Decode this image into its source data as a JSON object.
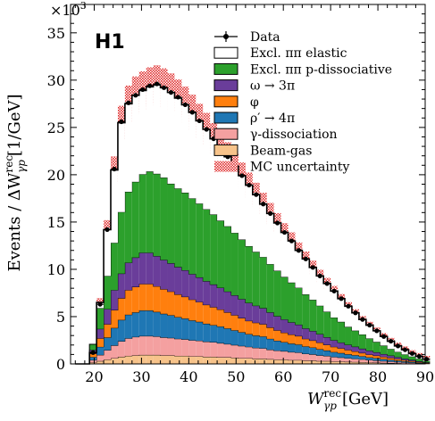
{
  "chart_data": {
    "type": "bar",
    "experiment_label": "H1",
    "ylabel_prefix": "Events /",
    "ylabel_delta": "ΔW",
    "ylabel_sup": "rec",
    "ylabel_sub": "γp",
    "ylabel_unit": "[1/GeV]",
    "xlabel_main": "W",
    "xlabel_sup": "rec",
    "xlabel_sub": "γp",
    "xlabel_unit": "[GeV]",
    "y_multiplier": "×10",
    "y_multiplier_exp": "3",
    "xlim": [
      15,
      90
    ],
    "ylim": [
      0,
      38
    ],
    "x_ticks": [
      20,
      30,
      40,
      50,
      60,
      70,
      80,
      90
    ],
    "y_ticks": [
      0,
      5,
      10,
      15,
      20,
      25,
      30,
      35
    ],
    "bin_width": 1.5,
    "bin_edges_start": 16,
    "totals": [
      0,
      0,
      1.2,
      6.5,
      14.2,
      20.5,
      25.5,
      27.5,
      28.4,
      28.9,
      29.3,
      29.5,
      29.2,
      28.7,
      28.1,
      27.4,
      26.6,
      25.7,
      24.8,
      23.8,
      22.9,
      21.9,
      20.9,
      19.9,
      18.9,
      17.9,
      16.9,
      15.9,
      14.9,
      13.9,
      13.0,
      12.0,
      11.1,
      10.2,
      9.3,
      8.5,
      7.7,
      6.9,
      6.1,
      5.4,
      4.7,
      4.1,
      3.5,
      2.9,
      2.4,
      1.9,
      1.5,
      1.1,
      0.8,
      0.5
    ],
    "series": [
      {
        "name": "Data",
        "color": "#000000",
        "kind": "points",
        "values": [
          0,
          0,
          1.2,
          6.3,
          14.2,
          20.6,
          25.6,
          27.6,
          28.4,
          29.0,
          29.4,
          29.6,
          29.2,
          28.7,
          28.2,
          27.4,
          26.6,
          25.7,
          24.8,
          23.8,
          22.9,
          21.9,
          20.9,
          19.9,
          18.9,
          17.9,
          16.9,
          15.9,
          14.9,
          13.9,
          13.0,
          12.0,
          11.1,
          10.2,
          9.3,
          8.5,
          7.7,
          6.9,
          6.1,
          5.4,
          4.7,
          4.1,
          3.5,
          2.9,
          2.4,
          1.9,
          1.5,
          1.1,
          0.8,
          0.5
        ]
      },
      {
        "name": "Excl. ππ elastic",
        "color": "#ffffff",
        "kind": "stack"
      },
      {
        "name": "Excl. ππ p-dissociative",
        "color": "#2ca02c",
        "kind": "stack",
        "values": [
          0,
          0,
          0.6,
          2.2,
          3.5,
          5.0,
          6.5,
          7.5,
          8.0,
          8.3,
          8.6,
          8.7,
          8.7,
          8.4,
          8.3,
          8.2,
          8.0,
          7.8,
          7.6,
          7.4,
          7.1,
          6.9,
          6.6,
          6.3,
          6.0,
          5.7,
          5.4,
          5.1,
          4.8,
          4.5,
          4.2,
          3.9,
          3.6,
          3.3,
          3.0,
          2.7,
          2.4,
          2.2,
          1.9,
          1.7,
          1.5,
          1.3,
          1.1,
          0.9,
          0.7,
          0.55,
          0.45,
          0.35,
          0.25,
          0.15
        ]
      },
      {
        "name": "ω → 3π",
        "color": "#6a3d9a",
        "kind": "stack",
        "values": [
          0,
          0,
          0.4,
          1.0,
          1.6,
          2.1,
          2.6,
          2.9,
          3.1,
          3.3,
          3.3,
          3.2,
          3.1,
          3.0,
          2.9,
          2.8,
          2.7,
          2.6,
          2.5,
          2.4,
          2.3,
          2.2,
          2.1,
          2.0,
          1.9,
          1.8,
          1.7,
          1.6,
          1.5,
          1.4,
          1.3,
          1.2,
          1.1,
          1.0,
          0.9,
          0.8,
          0.7,
          0.6,
          0.55,
          0.5,
          0.45,
          0.4,
          0.35,
          0.3,
          0.25,
          0.2,
          0.15,
          0.12,
          0.08,
          0.05
        ]
      },
      {
        "name": "φ",
        "color": "#ff7f0e",
        "kind": "stack",
        "values": [
          0,
          0,
          0.35,
          0.9,
          1.4,
          1.9,
          2.3,
          2.6,
          2.7,
          2.8,
          2.8,
          2.7,
          2.6,
          2.5,
          2.4,
          2.3,
          2.2,
          2.1,
          2.0,
          1.9,
          1.8,
          1.7,
          1.6,
          1.5,
          1.4,
          1.35,
          1.3,
          1.2,
          1.1,
          1.0,
          0.95,
          0.9,
          0.8,
          0.75,
          0.7,
          0.6,
          0.55,
          0.5,
          0.45,
          0.4,
          0.35,
          0.3,
          0.27,
          0.23,
          0.2,
          0.17,
          0.13,
          0.1,
          0.07,
          0.04
        ]
      },
      {
        "name": "ρ′ → 4π",
        "color": "#1f77b4",
        "kind": "stack",
        "values": [
          0,
          0,
          0.33,
          0.85,
          1.35,
          1.85,
          2.25,
          2.5,
          2.6,
          2.7,
          2.7,
          2.6,
          2.5,
          2.4,
          2.3,
          2.2,
          2.1,
          2.0,
          1.9,
          1.8,
          1.75,
          1.65,
          1.55,
          1.45,
          1.35,
          1.3,
          1.25,
          1.15,
          1.05,
          0.95,
          0.9,
          0.85,
          0.78,
          0.72,
          0.65,
          0.58,
          0.52,
          0.47,
          0.42,
          0.38,
          0.33,
          0.28,
          0.25,
          0.21,
          0.18,
          0.15,
          0.12,
          0.09,
          0.06,
          0.03
        ]
      },
      {
        "name": "γ-dissociation",
        "color": "#f4a0a0",
        "kind": "stack",
        "values": [
          0,
          0,
          0.25,
          0.65,
          1.0,
          1.35,
          1.65,
          1.85,
          1.95,
          2.0,
          2.0,
          1.95,
          1.9,
          1.85,
          1.8,
          1.75,
          1.7,
          1.65,
          1.6,
          1.55,
          1.5,
          1.4,
          1.35,
          1.3,
          1.2,
          1.15,
          1.1,
          1.0,
          0.95,
          0.9,
          0.85,
          0.8,
          0.72,
          0.66,
          0.6,
          0.54,
          0.48,
          0.43,
          0.38,
          0.34,
          0.3,
          0.26,
          0.23,
          0.19,
          0.16,
          0.13,
          0.1,
          0.08,
          0.05,
          0.03
        ]
      },
      {
        "name": "Beam-gas",
        "color": "#f7c38a",
        "kind": "stack",
        "values": [
          0,
          0,
          0.15,
          0.3,
          0.45,
          0.6,
          0.75,
          0.85,
          0.9,
          0.95,
          0.95,
          0.95,
          0.9,
          0.9,
          0.85,
          0.85,
          0.8,
          0.8,
          0.75,
          0.75,
          0.7,
          0.7,
          0.65,
          0.6,
          0.6,
          0.55,
          0.55,
          0.5,
          0.45,
          0.45,
          0.4,
          0.4,
          0.35,
          0.35,
          0.3,
          0.3,
          0.25,
          0.25,
          0.22,
          0.2,
          0.18,
          0.15,
          0.13,
          0.11,
          0.09,
          0.07,
          0.05,
          0.04,
          0.03,
          0.02
        ]
      },
      {
        "name": "MC uncertainty",
        "color": "#e03030",
        "kind": "band",
        "rel_uncert": 0.07
      }
    ]
  }
}
